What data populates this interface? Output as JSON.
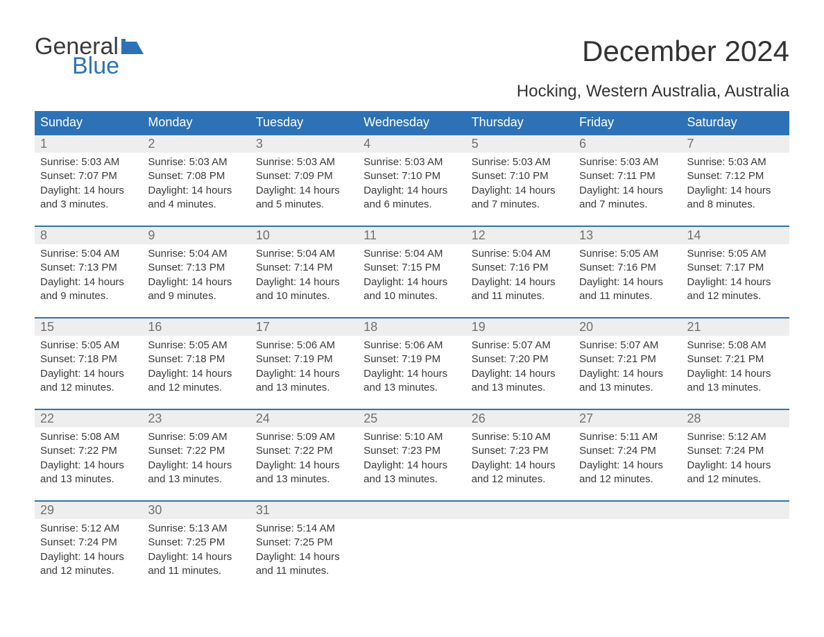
{
  "logo": {
    "text1": "General",
    "text2": "Blue",
    "flag_color": "#2d72b6"
  },
  "title": "December 2024",
  "subtitle": "Hocking, Western Australia, Australia",
  "colors": {
    "header_bg": "#2d72b6",
    "header_text": "#ffffff",
    "daynum_bg": "#eeeeee",
    "daynum_text": "#707070",
    "body_text": "#3a3a3a",
    "cell_border": "#2d72b6",
    "page_bg": "#ffffff"
  },
  "typography": {
    "title_fontsize": 42,
    "subtitle_fontsize": 24,
    "header_fontsize": 18,
    "daynum_fontsize": 18,
    "body_fontsize": 15,
    "font_family": "Arial"
  },
  "weekdays": [
    "Sunday",
    "Monday",
    "Tuesday",
    "Wednesday",
    "Thursday",
    "Friday",
    "Saturday"
  ],
  "weeks": [
    [
      {
        "n": "1",
        "sr": "Sunrise: 5:03 AM",
        "ss": "Sunset: 7:07 PM",
        "dl": "Daylight: 14 hours and 3 minutes."
      },
      {
        "n": "2",
        "sr": "Sunrise: 5:03 AM",
        "ss": "Sunset: 7:08 PM",
        "dl": "Daylight: 14 hours and 4 minutes."
      },
      {
        "n": "3",
        "sr": "Sunrise: 5:03 AM",
        "ss": "Sunset: 7:09 PM",
        "dl": "Daylight: 14 hours and 5 minutes."
      },
      {
        "n": "4",
        "sr": "Sunrise: 5:03 AM",
        "ss": "Sunset: 7:10 PM",
        "dl": "Daylight: 14 hours and 6 minutes."
      },
      {
        "n": "5",
        "sr": "Sunrise: 5:03 AM",
        "ss": "Sunset: 7:10 PM",
        "dl": "Daylight: 14 hours and 7 minutes."
      },
      {
        "n": "6",
        "sr": "Sunrise: 5:03 AM",
        "ss": "Sunset: 7:11 PM",
        "dl": "Daylight: 14 hours and 7 minutes."
      },
      {
        "n": "7",
        "sr": "Sunrise: 5:03 AM",
        "ss": "Sunset: 7:12 PM",
        "dl": "Daylight: 14 hours and 8 minutes."
      }
    ],
    [
      {
        "n": "8",
        "sr": "Sunrise: 5:04 AM",
        "ss": "Sunset: 7:13 PM",
        "dl": "Daylight: 14 hours and 9 minutes."
      },
      {
        "n": "9",
        "sr": "Sunrise: 5:04 AM",
        "ss": "Sunset: 7:13 PM",
        "dl": "Daylight: 14 hours and 9 minutes."
      },
      {
        "n": "10",
        "sr": "Sunrise: 5:04 AM",
        "ss": "Sunset: 7:14 PM",
        "dl": "Daylight: 14 hours and 10 minutes."
      },
      {
        "n": "11",
        "sr": "Sunrise: 5:04 AM",
        "ss": "Sunset: 7:15 PM",
        "dl": "Daylight: 14 hours and 10 minutes."
      },
      {
        "n": "12",
        "sr": "Sunrise: 5:04 AM",
        "ss": "Sunset: 7:16 PM",
        "dl": "Daylight: 14 hours and 11 minutes."
      },
      {
        "n": "13",
        "sr": "Sunrise: 5:05 AM",
        "ss": "Sunset: 7:16 PM",
        "dl": "Daylight: 14 hours and 11 minutes."
      },
      {
        "n": "14",
        "sr": "Sunrise: 5:05 AM",
        "ss": "Sunset: 7:17 PM",
        "dl": "Daylight: 14 hours and 12 minutes."
      }
    ],
    [
      {
        "n": "15",
        "sr": "Sunrise: 5:05 AM",
        "ss": "Sunset: 7:18 PM",
        "dl": "Daylight: 14 hours and 12 minutes."
      },
      {
        "n": "16",
        "sr": "Sunrise: 5:05 AM",
        "ss": "Sunset: 7:18 PM",
        "dl": "Daylight: 14 hours and 12 minutes."
      },
      {
        "n": "17",
        "sr": "Sunrise: 5:06 AM",
        "ss": "Sunset: 7:19 PM",
        "dl": "Daylight: 14 hours and 13 minutes."
      },
      {
        "n": "18",
        "sr": "Sunrise: 5:06 AM",
        "ss": "Sunset: 7:19 PM",
        "dl": "Daylight: 14 hours and 13 minutes."
      },
      {
        "n": "19",
        "sr": "Sunrise: 5:07 AM",
        "ss": "Sunset: 7:20 PM",
        "dl": "Daylight: 14 hours and 13 minutes."
      },
      {
        "n": "20",
        "sr": "Sunrise: 5:07 AM",
        "ss": "Sunset: 7:21 PM",
        "dl": "Daylight: 14 hours and 13 minutes."
      },
      {
        "n": "21",
        "sr": "Sunrise: 5:08 AM",
        "ss": "Sunset: 7:21 PM",
        "dl": "Daylight: 14 hours and 13 minutes."
      }
    ],
    [
      {
        "n": "22",
        "sr": "Sunrise: 5:08 AM",
        "ss": "Sunset: 7:22 PM",
        "dl": "Daylight: 14 hours and 13 minutes."
      },
      {
        "n": "23",
        "sr": "Sunrise: 5:09 AM",
        "ss": "Sunset: 7:22 PM",
        "dl": "Daylight: 14 hours and 13 minutes."
      },
      {
        "n": "24",
        "sr": "Sunrise: 5:09 AM",
        "ss": "Sunset: 7:22 PM",
        "dl": "Daylight: 14 hours and 13 minutes."
      },
      {
        "n": "25",
        "sr": "Sunrise: 5:10 AM",
        "ss": "Sunset: 7:23 PM",
        "dl": "Daylight: 14 hours and 13 minutes."
      },
      {
        "n": "26",
        "sr": "Sunrise: 5:10 AM",
        "ss": "Sunset: 7:23 PM",
        "dl": "Daylight: 14 hours and 12 minutes."
      },
      {
        "n": "27",
        "sr": "Sunrise: 5:11 AM",
        "ss": "Sunset: 7:24 PM",
        "dl": "Daylight: 14 hours and 12 minutes."
      },
      {
        "n": "28",
        "sr": "Sunrise: 5:12 AM",
        "ss": "Sunset: 7:24 PM",
        "dl": "Daylight: 14 hours and 12 minutes."
      }
    ],
    [
      {
        "n": "29",
        "sr": "Sunrise: 5:12 AM",
        "ss": "Sunset: 7:24 PM",
        "dl": "Daylight: 14 hours and 12 minutes."
      },
      {
        "n": "30",
        "sr": "Sunrise: 5:13 AM",
        "ss": "Sunset: 7:25 PM",
        "dl": "Daylight: 14 hours and 11 minutes."
      },
      {
        "n": "31",
        "sr": "Sunrise: 5:14 AM",
        "ss": "Sunset: 7:25 PM",
        "dl": "Daylight: 14 hours and 11 minutes."
      },
      null,
      null,
      null,
      null
    ]
  ]
}
